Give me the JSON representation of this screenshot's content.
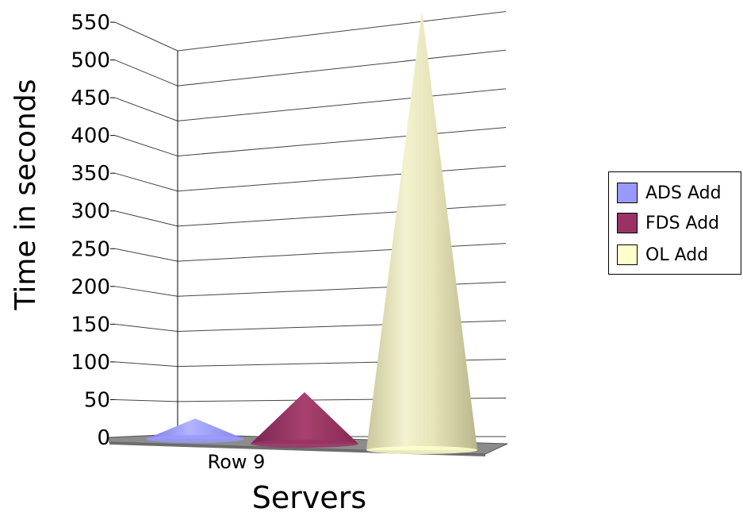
{
  "chart_data": {
    "type": "bar",
    "style": "3d-cone",
    "categories": [
      "Row 9"
    ],
    "series": [
      {
        "name": "ADS Add",
        "values": [
          25
        ],
        "color": "#9999ff"
      },
      {
        "name": "FDS Add",
        "values": [
          60
        ],
        "color": "#993366"
      },
      {
        "name": "OL Add",
        "values": [
          565
        ],
        "color": "#ffffcc"
      }
    ],
    "ylabel": "Time in seconds",
    "xlabel": "Servers",
    "ylim": [
      0,
      550
    ],
    "yticks": [
      "0",
      "50",
      "100",
      "150",
      "200",
      "250",
      "300",
      "350",
      "400",
      "450",
      "500",
      "550"
    ],
    "grid": true,
    "legend": "right"
  }
}
